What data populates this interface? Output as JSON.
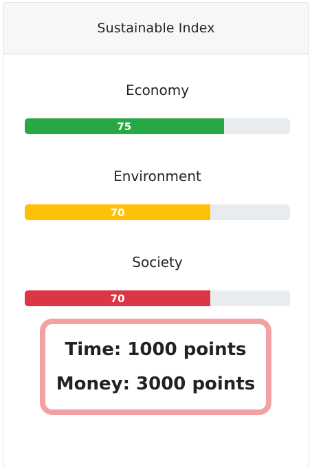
{
  "panel": {
    "title": "Sustainable Index"
  },
  "metrics": [
    {
      "label": "Economy",
      "value": 75,
      "value_text": "75",
      "color": "#28a745"
    },
    {
      "label": "Environment",
      "value": 70,
      "value_text": "70",
      "color": "#ffc107"
    },
    {
      "label": "Society",
      "value": 70,
      "value_text": "70",
      "color": "#dc3545"
    }
  ],
  "resources": {
    "time": "Time: 1000 points",
    "money": "Money: 3000 points"
  },
  "colors": {
    "track": "#e9ecef",
    "highlight_border": "#f4a1a4",
    "header_bg": "#f7f7f7"
  }
}
